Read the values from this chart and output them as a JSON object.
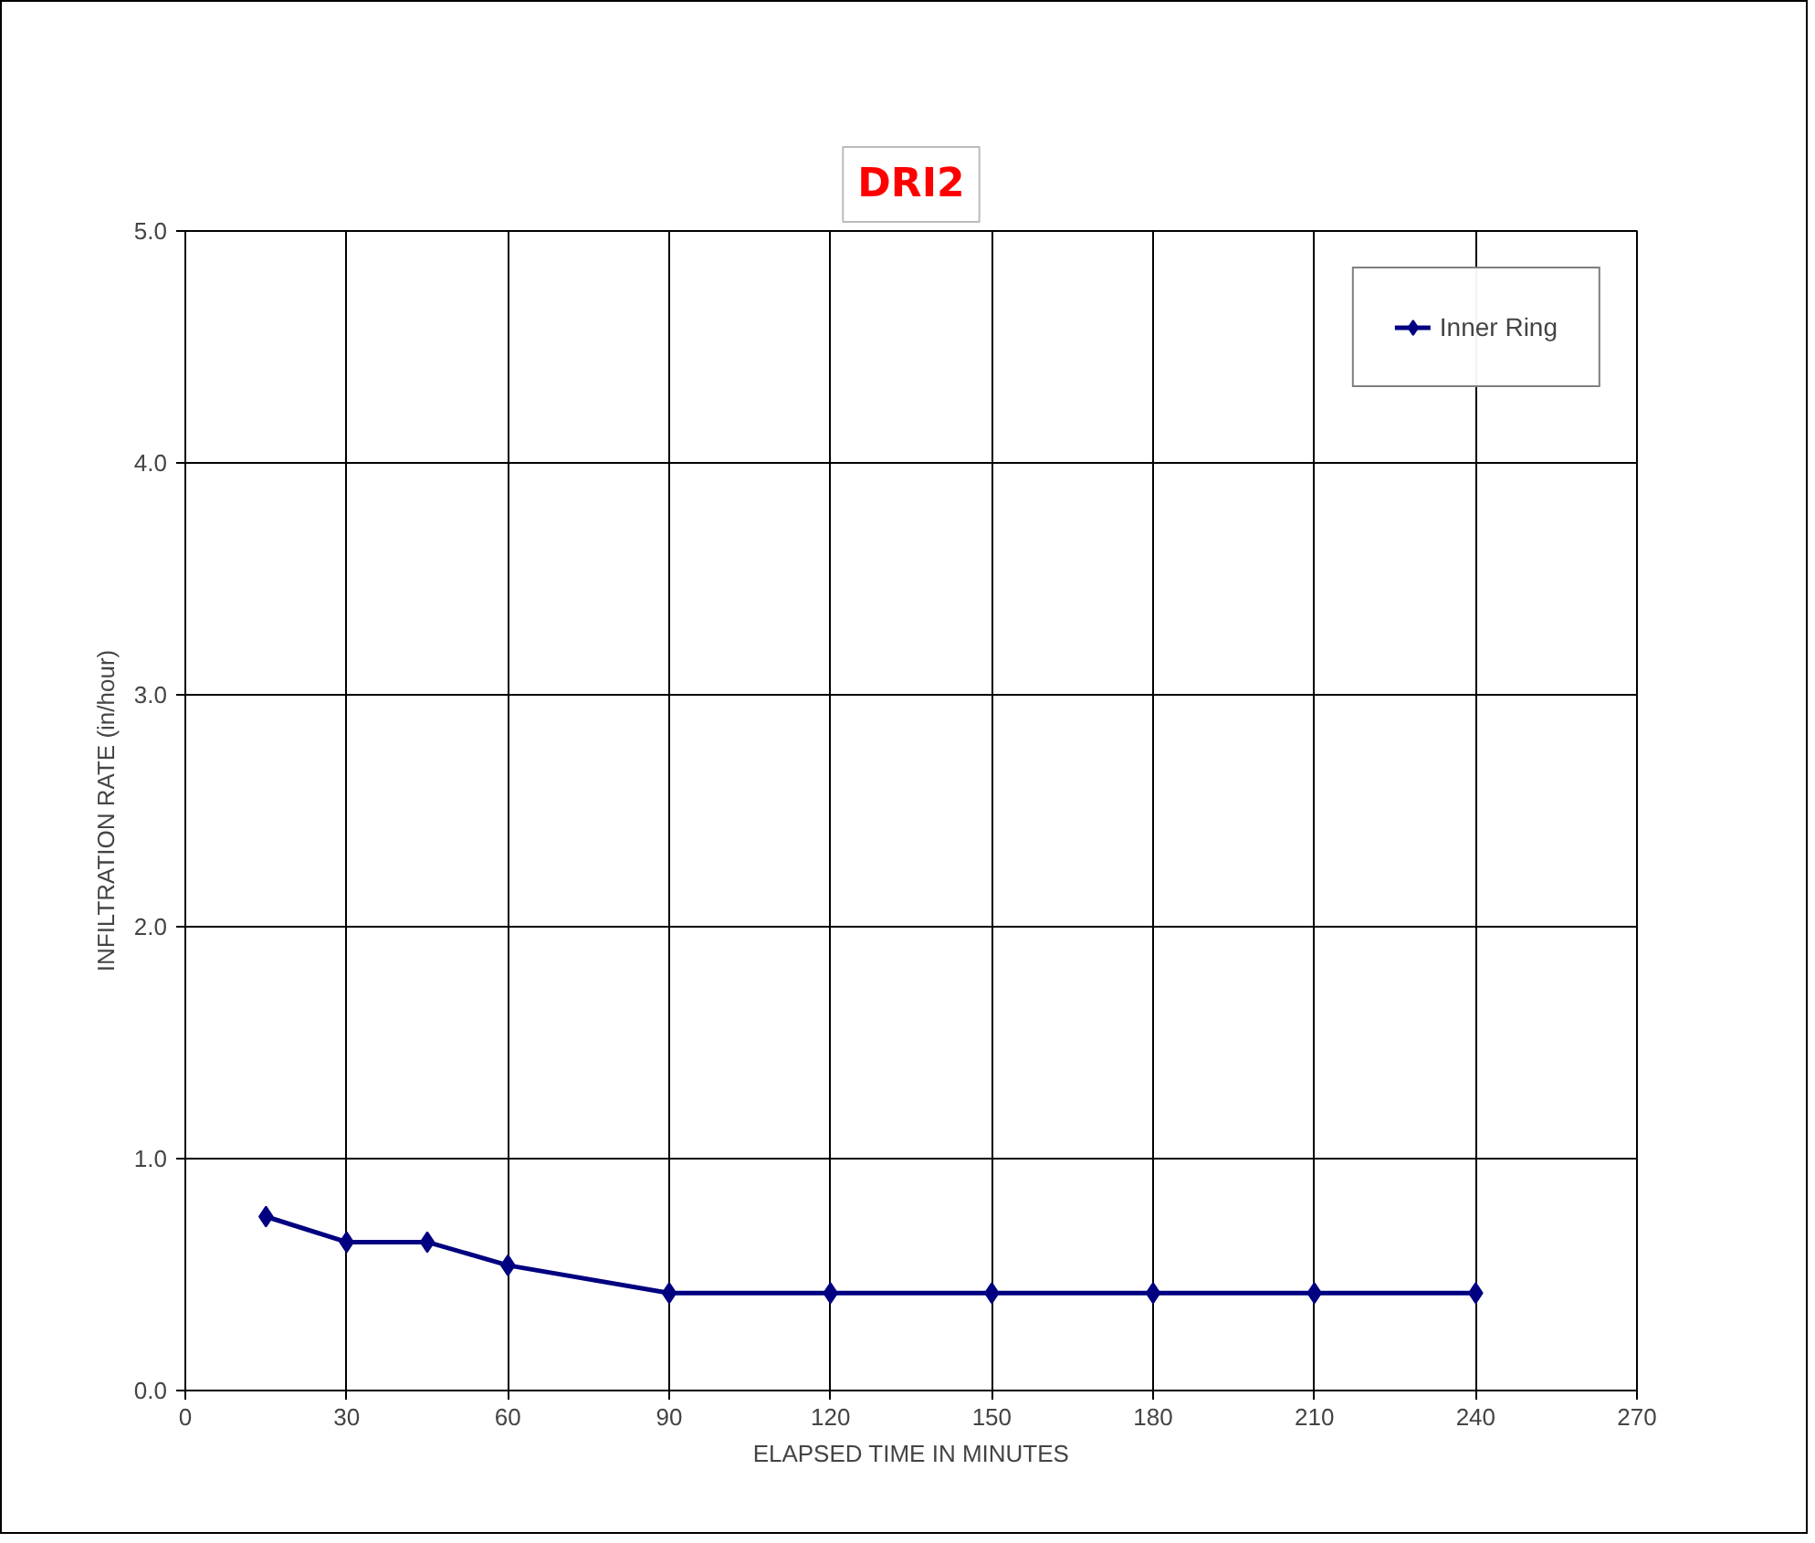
{
  "chart_data": {
    "type": "line",
    "title": "DRI2",
    "xlabel": "ELAPSED TIME IN MINUTES",
    "ylabel": "INFILTRATION RATE (in/hour)",
    "x": [
      15,
      30,
      45,
      60,
      90,
      120,
      150,
      180,
      210,
      240
    ],
    "series": [
      {
        "name": "Inner Ring",
        "color": "#000080",
        "values": [
          0.75,
          0.64,
          0.64,
          0.54,
          0.42,
          0.42,
          0.42,
          0.42,
          0.42,
          0.42
        ]
      }
    ],
    "xlim": [
      0,
      270
    ],
    "xticks": [
      0,
      30,
      60,
      90,
      120,
      150,
      180,
      210,
      240,
      270
    ],
    "ylim": [
      0,
      5
    ],
    "yticks": [
      {
        "value": 0,
        "label": "0.0"
      },
      {
        "value": 1,
        "label": "1.0"
      },
      {
        "value": 2,
        "label": "2.0"
      },
      {
        "value": 3,
        "label": "3.0"
      },
      {
        "value": 4,
        "label": "4.0"
      },
      {
        "value": 5,
        "label": "5.0"
      }
    ],
    "grid": true,
    "legend": "top right",
    "marker": "diamond",
    "line_style": "solid"
  }
}
